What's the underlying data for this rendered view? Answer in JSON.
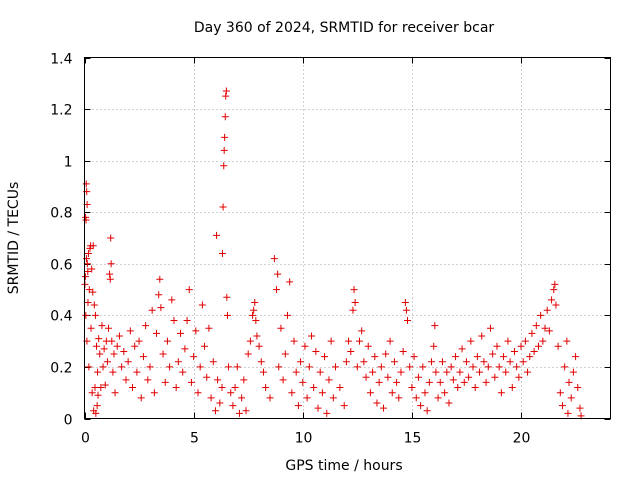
{
  "chart_data": {
    "type": "scatter",
    "title": "Day 360 of 2024, SRMTID for receiver bcar",
    "xlabel": "GPS time / hours",
    "ylabel": "SRMTID / TECUs",
    "xlim": [
      0,
      24.1
    ],
    "ylim": [
      0,
      1.4
    ],
    "xticks": [
      0,
      5,
      10,
      15,
      20
    ],
    "xtick_labels": [
      "0",
      "5",
      "10",
      "15",
      "20"
    ],
    "yticks": [
      0,
      0.2,
      0.4,
      0.6,
      0.8,
      1,
      1.2,
      1.4
    ],
    "ytick_labels": [
      "0",
      "0.2",
      "0.4",
      "0.6",
      "0.8",
      "1",
      "1.2",
      "1.4"
    ],
    "grid": true,
    "marker": "plus",
    "color": "#e00000",
    "series": [
      {
        "name": "SRMTID",
        "points": [
          [
            0.02,
            0.52
          ],
          [
            0.04,
            0.55
          ],
          [
            0.05,
            0.78
          ],
          [
            0.06,
            0.4
          ],
          [
            0.07,
            0.77
          ],
          [
            0.08,
            0.91
          ],
          [
            0.09,
            0.62
          ],
          [
            0.1,
            0.88
          ],
          [
            0.11,
            0.3
          ],
          [
            0.12,
            0.83
          ],
          [
            0.13,
            0.6
          ],
          [
            0.15,
            0.57
          ],
          [
            0.16,
            0.45
          ],
          [
            0.18,
            0.64
          ],
          [
            0.2,
            0.2
          ],
          [
            0.22,
            0.5
          ],
          [
            0.25,
            0.66
          ],
          [
            0.28,
            0.67
          ],
          [
            0.3,
            0.35
          ],
          [
            0.33,
            0.58
          ],
          [
            0.35,
            0.1
          ],
          [
            0.38,
            0.49
          ],
          [
            0.4,
            0.67
          ],
          [
            0.42,
            0.03
          ],
          [
            0.45,
            0.44
          ],
          [
            0.48,
            0.12
          ],
          [
            0.5,
            0.4
          ],
          [
            0.52,
            0.02
          ],
          [
            0.55,
            0.28
          ],
          [
            0.58,
            0.05
          ],
          [
            0.6,
            0.18
          ],
          [
            0.62,
            0.09
          ],
          [
            0.65,
            0.31
          ],
          [
            0.7,
            0.25
          ],
          [
            0.75,
            0.12
          ],
          [
            0.8,
            0.36
          ],
          [
            0.85,
            0.2
          ],
          [
            0.9,
            0.27
          ],
          [
            0.95,
            0.13
          ],
          [
            1.0,
            0.3
          ],
          [
            1.05,
            0.22
          ],
          [
            1.1,
            0.35
          ],
          [
            1.15,
            0.56
          ],
          [
            1.18,
            0.54
          ],
          [
            1.2,
            0.7
          ],
          [
            1.22,
            0.6
          ],
          [
            1.25,
            0.3
          ],
          [
            1.3,
            0.18
          ],
          [
            1.35,
            0.25
          ],
          [
            1.4,
            0.1
          ],
          [
            1.5,
            0.28
          ],
          [
            1.6,
            0.32
          ],
          [
            1.7,
            0.2
          ],
          [
            1.8,
            0.26
          ],
          [
            1.9,
            0.15
          ],
          [
            2.0,
            0.22
          ],
          [
            2.1,
            0.34
          ],
          [
            2.2,
            0.12
          ],
          [
            2.3,
            0.28
          ],
          [
            2.4,
            0.18
          ],
          [
            2.5,
            0.3
          ],
          [
            2.6,
            0.08
          ],
          [
            2.7,
            0.24
          ],
          [
            2.8,
            0.36
          ],
          [
            2.9,
            0.15
          ],
          [
            3.0,
            0.2
          ],
          [
            3.1,
            0.42
          ],
          [
            3.2,
            0.1
          ],
          [
            3.3,
            0.33
          ],
          [
            3.4,
            0.48
          ],
          [
            3.45,
            0.54
          ],
          [
            3.5,
            0.43
          ],
          [
            3.6,
            0.25
          ],
          [
            3.7,
            0.14
          ],
          [
            3.8,
            0.3
          ],
          [
            3.9,
            0.2
          ],
          [
            4.0,
            0.46
          ],
          [
            4.1,
            0.38
          ],
          [
            4.2,
            0.12
          ],
          [
            4.3,
            0.22
          ],
          [
            4.4,
            0.33
          ],
          [
            4.5,
            0.18
          ],
          [
            4.6,
            0.27
          ],
          [
            4.7,
            0.38
          ],
          [
            4.8,
            0.5
          ],
          [
            4.9,
            0.14
          ],
          [
            5.0,
            0.24
          ],
          [
            5.1,
            0.34
          ],
          [
            5.2,
            0.1
          ],
          [
            5.3,
            0.2
          ],
          [
            5.4,
            0.44
          ],
          [
            5.5,
            0.28
          ],
          [
            5.6,
            0.16
          ],
          [
            5.7,
            0.35
          ],
          [
            5.8,
            0.08
          ],
          [
            5.9,
            0.22
          ],
          [
            6.0,
            0.03
          ],
          [
            6.05,
            0.71
          ],
          [
            6.1,
            0.15
          ],
          [
            6.2,
            0.06
          ],
          [
            6.3,
            0.12
          ],
          [
            6.32,
            0.64
          ],
          [
            6.35,
            0.82
          ],
          [
            6.38,
            0.98
          ],
          [
            6.4,
            1.04
          ],
          [
            6.42,
            1.09
          ],
          [
            6.45,
            1.17
          ],
          [
            6.47,
            1.25
          ],
          [
            6.5,
            1.27
          ],
          [
            6.52,
            0.47
          ],
          [
            6.55,
            0.4
          ],
          [
            6.6,
            0.2
          ],
          [
            6.7,
            0.1
          ],
          [
            6.8,
            0.05
          ],
          [
            6.9,
            0.12
          ],
          [
            7.0,
            0.2
          ],
          [
            7.1,
            0.02
          ],
          [
            7.2,
            0.08
          ],
          [
            7.3,
            0.15
          ],
          [
            7.4,
            0.03
          ],
          [
            7.5,
            0.25
          ],
          [
            7.6,
            0.3
          ],
          [
            7.7,
            0.4
          ],
          [
            7.75,
            0.42
          ],
          [
            7.8,
            0.45
          ],
          [
            7.85,
            0.38
          ],
          [
            7.9,
            0.32
          ],
          [
            8.0,
            0.28
          ],
          [
            8.1,
            0.22
          ],
          [
            8.2,
            0.18
          ],
          [
            8.3,
            0.12
          ],
          [
            8.5,
            0.08
          ],
          [
            8.7,
            0.62
          ],
          [
            8.8,
            0.5
          ],
          [
            8.85,
            0.56
          ],
          [
            8.9,
            0.2
          ],
          [
            9.0,
            0.35
          ],
          [
            9.1,
            0.15
          ],
          [
            9.2,
            0.25
          ],
          [
            9.3,
            0.4
          ],
          [
            9.4,
            0.53
          ],
          [
            9.5,
            0.1
          ],
          [
            9.6,
            0.3
          ],
          [
            9.7,
            0.18
          ],
          [
            9.8,
            0.05
          ],
          [
            9.9,
            0.22
          ],
          [
            10.0,
            0.14
          ],
          [
            10.1,
            0.28
          ],
          [
            10.2,
            0.08
          ],
          [
            10.3,
            0.2
          ],
          [
            10.4,
            0.32
          ],
          [
            10.5,
            0.12
          ],
          [
            10.6,
            0.26
          ],
          [
            10.7,
            0.04
          ],
          [
            10.8,
            0.18
          ],
          [
            10.9,
            0.1
          ],
          [
            11.0,
            0.24
          ],
          [
            11.1,
            0.02
          ],
          [
            11.2,
            0.15
          ],
          [
            11.3,
            0.3
          ],
          [
            11.4,
            0.08
          ],
          [
            11.5,
            0.2
          ],
          [
            11.7,
            0.12
          ],
          [
            11.9,
            0.05
          ],
          [
            12.0,
            0.22
          ],
          [
            12.1,
            0.3
          ],
          [
            12.2,
            0.26
          ],
          [
            12.3,
            0.42
          ],
          [
            12.35,
            0.5
          ],
          [
            12.4,
            0.45
          ],
          [
            12.5,
            0.2
          ],
          [
            12.6,
            0.3
          ],
          [
            12.7,
            0.34
          ],
          [
            12.8,
            0.22
          ],
          [
            12.9,
            0.16
          ],
          [
            13.0,
            0.28
          ],
          [
            13.1,
            0.1
          ],
          [
            13.2,
            0.18
          ],
          [
            13.3,
            0.24
          ],
          [
            13.4,
            0.06
          ],
          [
            13.5,
            0.14
          ],
          [
            13.6,
            0.2
          ],
          [
            13.7,
            0.04
          ],
          [
            13.8,
            0.25
          ],
          [
            13.9,
            0.16
          ],
          [
            14.0,
            0.3
          ],
          [
            14.1,
            0.1
          ],
          [
            14.2,
            0.22
          ],
          [
            14.3,
            0.14
          ],
          [
            14.4,
            0.08
          ],
          [
            14.5,
            0.18
          ],
          [
            14.6,
            0.26
          ],
          [
            14.7,
            0.45
          ],
          [
            14.75,
            0.42
          ],
          [
            14.8,
            0.38
          ],
          [
            14.9,
            0.2
          ],
          [
            15.0,
            0.12
          ],
          [
            15.1,
            0.24
          ],
          [
            15.2,
            0.08
          ],
          [
            15.3,
            0.16
          ],
          [
            15.4,
            0.05
          ],
          [
            15.5,
            0.2
          ],
          [
            15.6,
            0.1
          ],
          [
            15.7,
            0.03
          ],
          [
            15.8,
            0.14
          ],
          [
            15.9,
            0.22
          ],
          [
            16.0,
            0.28
          ],
          [
            16.05,
            0.36
          ],
          [
            16.1,
            0.18
          ],
          [
            16.2,
            0.08
          ],
          [
            16.3,
            0.14
          ],
          [
            16.4,
            0.22
          ],
          [
            16.5,
            0.1
          ],
          [
            16.6,
            0.18
          ],
          [
            16.7,
            0.06
          ],
          [
            16.8,
            0.2
          ],
          [
            16.9,
            0.15
          ],
          [
            17.0,
            0.24
          ],
          [
            17.1,
            0.12
          ],
          [
            17.2,
            0.18
          ],
          [
            17.3,
            0.27
          ],
          [
            17.4,
            0.14
          ],
          [
            17.5,
            0.22
          ],
          [
            17.6,
            0.16
          ],
          [
            17.7,
            0.3
          ],
          [
            17.8,
            0.2
          ],
          [
            17.9,
            0.12
          ],
          [
            18.0,
            0.24
          ],
          [
            18.1,
            0.18
          ],
          [
            18.2,
            0.32
          ],
          [
            18.3,
            0.22
          ],
          [
            18.4,
            0.14
          ],
          [
            18.5,
            0.2
          ],
          [
            18.6,
            0.35
          ],
          [
            18.7,
            0.25
          ],
          [
            18.8,
            0.16
          ],
          [
            18.9,
            0.28
          ],
          [
            19.0,
            0.2
          ],
          [
            19.1,
            0.1
          ],
          [
            19.2,
            0.24
          ],
          [
            19.3,
            0.18
          ],
          [
            19.4,
            0.3
          ],
          [
            19.5,
            0.22
          ],
          [
            19.6,
            0.12
          ],
          [
            19.7,
            0.26
          ],
          [
            19.8,
            0.2
          ],
          [
            19.9,
            0.16
          ],
          [
            20.0,
            0.28
          ],
          [
            20.1,
            0.22
          ],
          [
            20.2,
            0.3
          ],
          [
            20.3,
            0.18
          ],
          [
            20.4,
            0.24
          ],
          [
            20.5,
            0.33
          ],
          [
            20.6,
            0.26
          ],
          [
            20.7,
            0.36
          ],
          [
            20.8,
            0.28
          ],
          [
            20.9,
            0.4
          ],
          [
            21.0,
            0.3
          ],
          [
            21.1,
            0.35
          ],
          [
            21.2,
            0.42
          ],
          [
            21.3,
            0.34
          ],
          [
            21.4,
            0.46
          ],
          [
            21.5,
            0.5
          ],
          [
            21.55,
            0.52
          ],
          [
            21.6,
            0.44
          ],
          [
            21.7,
            0.28
          ],
          [
            21.8,
            0.1
          ],
          [
            21.9,
            0.05
          ],
          [
            22.0,
            0.2
          ],
          [
            22.1,
            0.3
          ],
          [
            22.15,
            0.02
          ],
          [
            22.2,
            0.14
          ],
          [
            22.3,
            0.08
          ],
          [
            22.4,
            0.18
          ],
          [
            22.5,
            0.24
          ],
          [
            22.6,
            0.12
          ],
          [
            22.7,
            0.04
          ],
          [
            22.75,
            0.01
          ]
        ]
      }
    ]
  }
}
